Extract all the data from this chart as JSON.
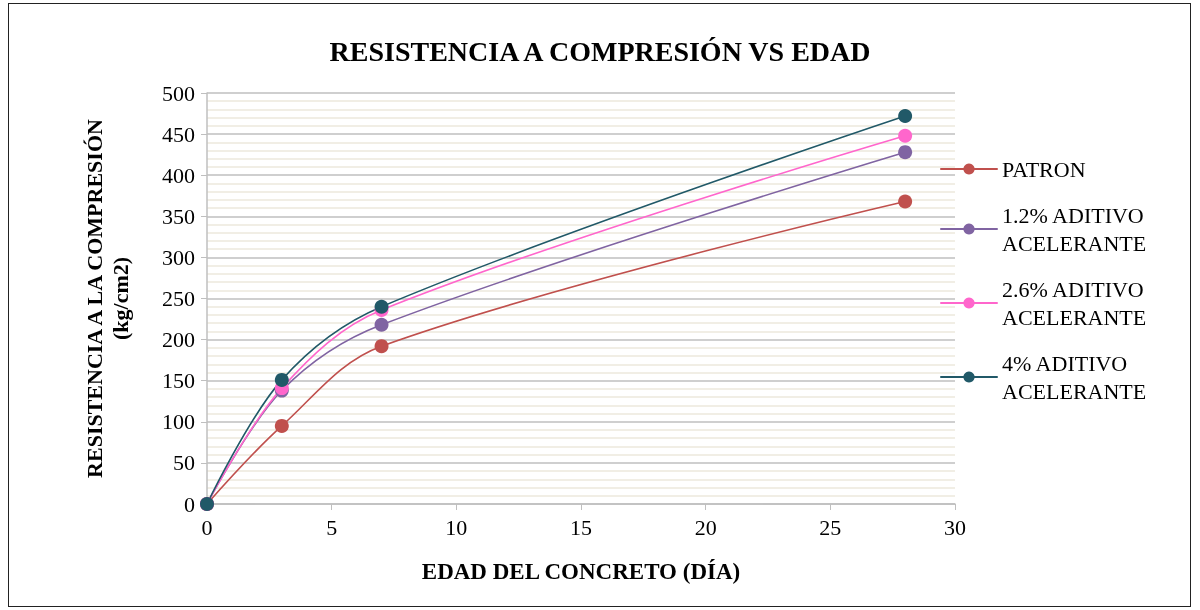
{
  "chart_data": {
    "type": "line",
    "title": "RESISTENCIA A COMPRESIÓN VS EDAD",
    "xlabel": "EDAD DEL CONCRETO (DÍA)",
    "ylabel": "RESISTENCIA A LA COMPRESIÓN (kg/cm2)",
    "x": [
      0,
      3,
      7,
      28
    ],
    "series": [
      {
        "name": "PATRON",
        "color": "#c0504d",
        "values": [
          0,
          95,
          192,
          368
        ]
      },
      {
        "name": "1.2% ADITIVO ACELERANTE",
        "color": "#8064a2",
        "values": [
          0,
          138,
          218,
          428
        ]
      },
      {
        "name": "2.6% ADITIVO ACELERANTE",
        "color": "#ff66cc",
        "values": [
          0,
          141,
          236,
          448
        ]
      },
      {
        "name": "4% ADITIVO ACELERANTE",
        "color": "#215968",
        "values": [
          0,
          151,
          240,
          472
        ]
      }
    ],
    "xlim": [
      0,
      30
    ],
    "xticks": [
      0,
      5,
      10,
      15,
      20,
      25,
      30
    ],
    "ylim": [
      0,
      500
    ],
    "yticks": [
      0,
      50,
      100,
      150,
      200,
      250,
      300,
      350,
      400,
      450,
      500
    ],
    "grid": "y",
    "legend": "right",
    "marker": "circle",
    "line_style": "solid"
  }
}
